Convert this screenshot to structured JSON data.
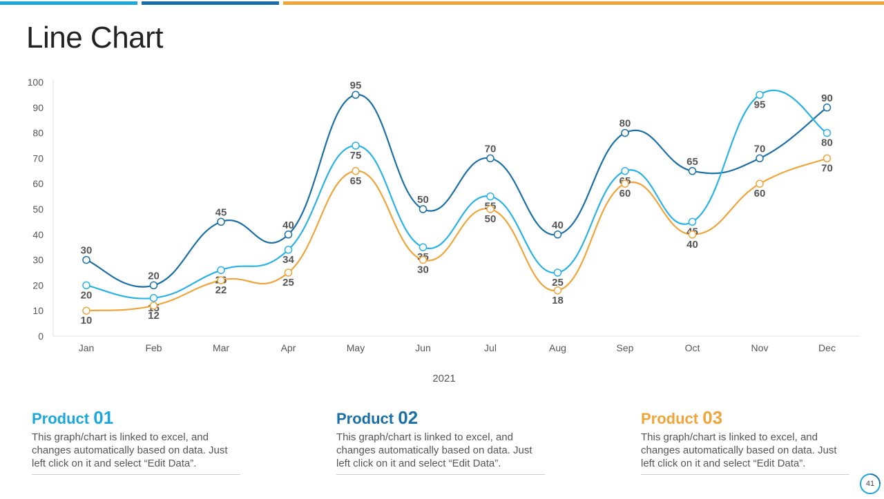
{
  "title": "Line Chart",
  "colors": {
    "bar1": "#1ba6dc",
    "bar2": "#1a6fa6",
    "bar3": "#f0a43a"
  },
  "chart_data": {
    "type": "line",
    "categories": [
      "Jan",
      "Feb",
      "Mar",
      "Apr",
      "May",
      "Jun",
      "Jul",
      "Aug",
      "Sep",
      "Oct",
      "Nov",
      "Dec"
    ],
    "xlabel": "2021",
    "ylabel": "",
    "ylim": [
      0,
      100
    ],
    "yticks": [
      0,
      10,
      20,
      30,
      40,
      50,
      60,
      70,
      80,
      90,
      100
    ],
    "grid": false,
    "series": [
      {
        "name": "Product 02",
        "color": "#1a6fa6",
        "values": [
          30,
          20,
          45,
          40,
          95,
          50,
          70,
          40,
          80,
          65,
          70,
          90
        ]
      },
      {
        "name": "Product 01",
        "color": "#29b2e6",
        "values": [
          20,
          15,
          26,
          34,
          75,
          35,
          55,
          25,
          65,
          45,
          95,
          80
        ]
      },
      {
        "name": "Product 03",
        "color": "#f0a43a",
        "values": [
          10,
          12,
          22,
          25,
          65,
          30,
          50,
          18,
          60,
          40,
          60,
          70
        ]
      }
    ]
  },
  "products": [
    {
      "label": "Product",
      "number": "01",
      "color": "#1ba6dc",
      "desc": "This graph/chart is linked to excel, and changes automatically based on data. Just left click on it and select “Edit Data”."
    },
    {
      "label": "Product",
      "number": "02",
      "color": "#1a6fa6",
      "desc": "This graph/chart is linked to excel, and changes automatically based on data. Just left click on it and select “Edit Data”."
    },
    {
      "label": "Product",
      "number": "03",
      "color": "#f0a43a",
      "desc": "This graph/chart is linked to excel, and changes automatically based on data. Just left click on it and select “Edit Data”."
    }
  ],
  "page_number": "41"
}
